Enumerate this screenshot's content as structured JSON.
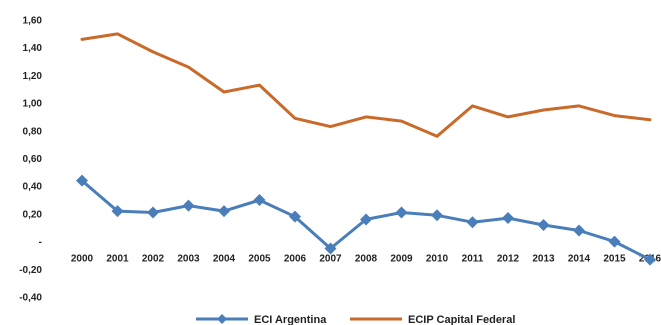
{
  "chart_data": {
    "type": "line",
    "title": "",
    "xlabel": "",
    "ylabel": "",
    "categories": [
      "2000",
      "2001",
      "2002",
      "2003",
      "2004",
      "2005",
      "2006",
      "2007",
      "2008",
      "2009",
      "2010",
      "2011",
      "2012",
      "2013",
      "2014",
      "2015",
      "2016"
    ],
    "ylim": [
      -0.4,
      1.6
    ],
    "yticks": [
      {
        "value": 1.6,
        "label": "1,60"
      },
      {
        "value": 1.4,
        "label": "1,40"
      },
      {
        "value": 1.2,
        "label": "1,20"
      },
      {
        "value": 1.0,
        "label": "1,00"
      },
      {
        "value": 0.8,
        "label": "0,80"
      },
      {
        "value": 0.6,
        "label": "0,60"
      },
      {
        "value": 0.4,
        "label": "0,40"
      },
      {
        "value": 0.2,
        "label": "0,20"
      },
      {
        "value": 0.0,
        "label": "-"
      },
      {
        "value": -0.2,
        "label": "-0,20"
      },
      {
        "value": -0.4,
        "label": "-0,40"
      }
    ],
    "grid": false,
    "legend_position": "bottom",
    "series": [
      {
        "name": "ECI Argentina",
        "color": "#4A7EBB",
        "marker": "diamond",
        "values": [
          0.44,
          0.22,
          0.21,
          0.26,
          0.22,
          0.3,
          0.18,
          -0.05,
          0.16,
          0.21,
          0.19,
          0.14,
          0.17,
          0.12,
          0.08,
          0.0,
          -0.13
        ]
      },
      {
        "name": "ECIP Capital Federal",
        "color": "#C96A2A",
        "marker": "none",
        "values": [
          1.46,
          1.5,
          1.37,
          1.26,
          1.08,
          1.13,
          0.89,
          0.83,
          0.9,
          0.87,
          0.76,
          0.98,
          0.9,
          0.95,
          0.98,
          0.91,
          0.88
        ]
      }
    ]
  }
}
